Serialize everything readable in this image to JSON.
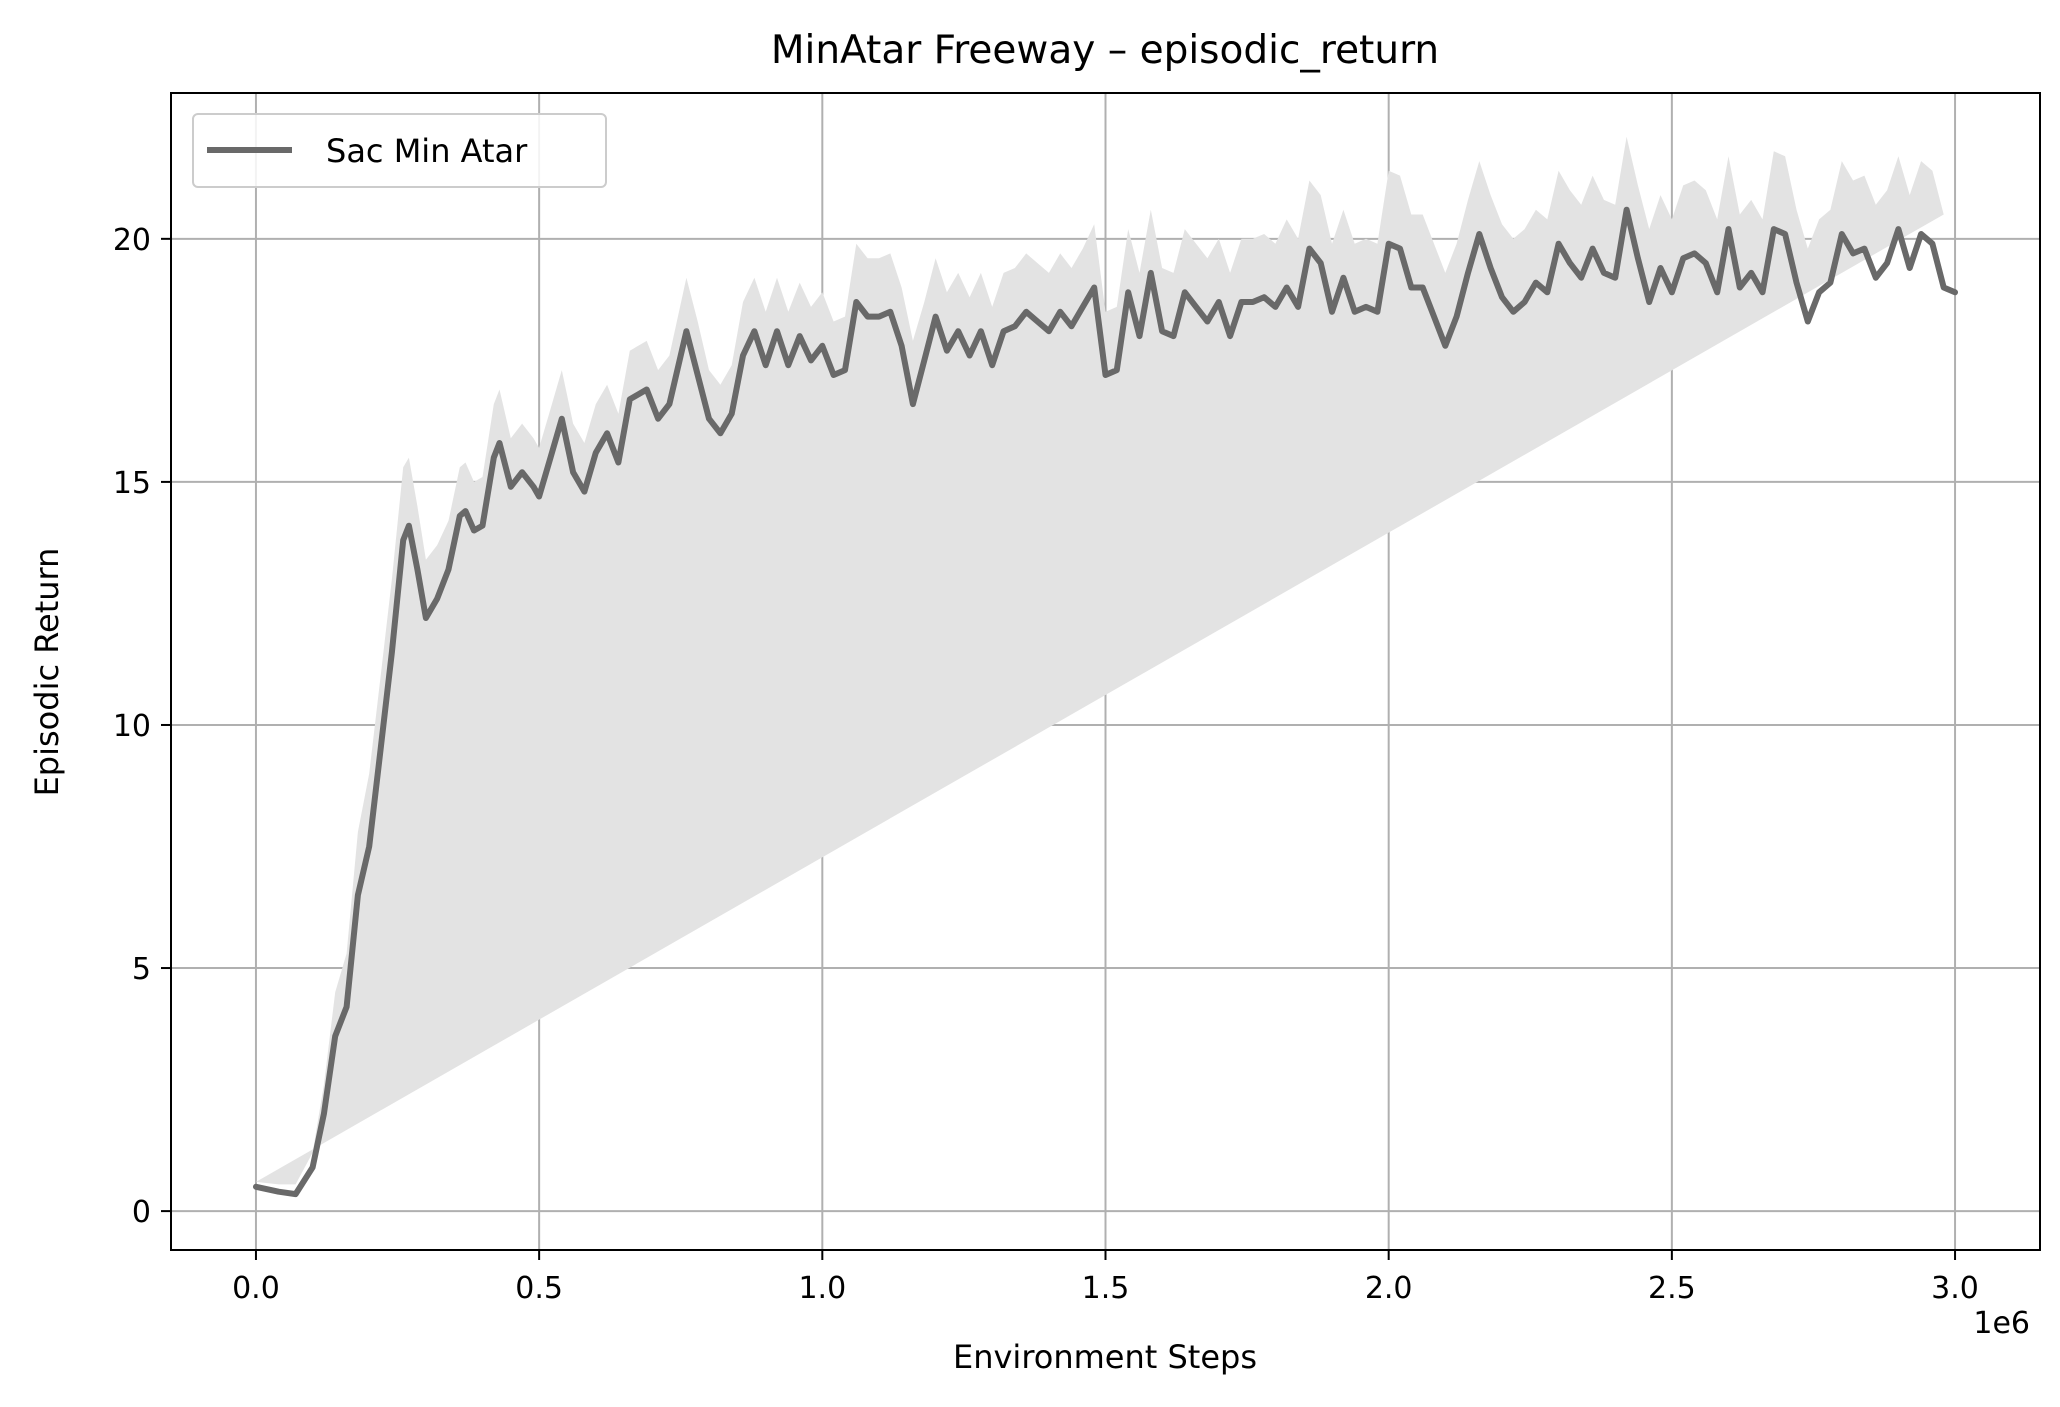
{
  "chart_data": {
    "type": "line",
    "title": "MinAtar Freeway – episodic_return",
    "xlabel": "Environment Steps",
    "ylabel": "Episodic Return",
    "x_offset_label": "1e6",
    "xlim": [
      -150000,
      3150000
    ],
    "ylim": [
      -0.8,
      23.0
    ],
    "x_ticks": [
      0,
      500000,
      1000000,
      1500000,
      2000000,
      2500000,
      3000000
    ],
    "x_tick_labels": [
      "0.0",
      "0.5",
      "1.0",
      "1.5",
      "2.0",
      "2.5",
      "3.0"
    ],
    "y_ticks": [
      0,
      5,
      10,
      15,
      20
    ],
    "y_tick_labels": [
      "0",
      "5",
      "10",
      "15",
      "20"
    ],
    "grid": true,
    "legend_position": "top-left",
    "colors": {
      "line": "#696969",
      "band": "#e3e3e3",
      "grid": "#b0b0b0"
    },
    "series": [
      {
        "name": "Sac Min Atar",
        "x": [
          0,
          40000,
          70000,
          100000,
          120000,
          140000,
          160000,
          180000,
          200000,
          220000,
          240000,
          260000,
          270000,
          285000,
          300000,
          320000,
          340000,
          360000,
          370000,
          385000,
          400000,
          420000,
          430000,
          450000,
          470000,
          490000,
          500000,
          520000,
          540000,
          560000,
          580000,
          600000,
          620000,
          640000,
          660000,
          690000,
          710000,
          730000,
          760000,
          780000,
          800000,
          820000,
          840000,
          860000,
          880000,
          900000,
          920000,
          940000,
          960000,
          980000,
          1000000,
          1020000,
          1040000,
          1060000,
          1080000,
          1100000,
          1120000,
          1140000,
          1160000,
          1180000,
          1200000,
          1220000,
          1240000,
          1260000,
          1280000,
          1300000,
          1320000,
          1340000,
          1360000,
          1380000,
          1400000,
          1420000,
          1440000,
          1460000,
          1480000,
          1500000,
          1520000,
          1540000,
          1560000,
          1580000,
          1600000,
          1620000,
          1640000,
          1660000,
          1680000,
          1700000,
          1720000,
          1740000,
          1760000,
          1780000,
          1800000,
          1820000,
          1840000,
          1860000,
          1880000,
          1900000,
          1920000,
          1940000,
          1960000,
          1980000,
          2000000,
          2020000,
          2040000,
          2060000,
          2080000,
          2100000,
          2120000,
          2140000,
          2160000,
          2180000,
          2200000,
          2220000,
          2240000,
          2260000,
          2280000,
          2300000,
          2320000,
          2340000,
          2360000,
          2380000,
          2400000,
          2420000,
          2440000,
          2460000,
          2480000,
          2500000,
          2520000,
          2540000,
          2560000,
          2580000,
          2600000,
          2620000,
          2640000,
          2660000,
          2680000,
          2700000,
          2720000,
          2740000,
          2760000,
          2780000,
          2800000,
          2820000,
          2840000,
          2860000,
          2880000,
          2900000,
          2920000,
          2940000,
          2960000,
          2980000,
          3000000
        ],
        "y": [
          0.5,
          0.4,
          0.35,
          0.9,
          2.0,
          3.6,
          4.2,
          6.5,
          7.5,
          9.5,
          11.5,
          13.8,
          14.1,
          13.2,
          12.2,
          12.6,
          13.2,
          14.3,
          14.4,
          14.0,
          14.1,
          15.5,
          15.8,
          14.9,
          15.2,
          14.9,
          14.7,
          15.5,
          16.3,
          15.2,
          14.8,
          15.6,
          16.0,
          15.4,
          16.7,
          16.9,
          16.3,
          16.6,
          18.1,
          17.2,
          16.3,
          16.0,
          16.4,
          17.6,
          18.1,
          17.4,
          18.1,
          17.4,
          18.0,
          17.5,
          17.8,
          17.2,
          17.3,
          18.7,
          18.4,
          18.4,
          18.5,
          17.8,
          16.6,
          17.5,
          18.4,
          17.7,
          18.1,
          17.6,
          18.1,
          17.4,
          18.1,
          18.2,
          18.5,
          18.3,
          18.1,
          18.5,
          18.2,
          18.6,
          19.0,
          17.2,
          17.3,
          18.9,
          18.0,
          19.3,
          18.1,
          18.0,
          18.9,
          18.6,
          18.3,
          18.7,
          18.0,
          18.7,
          18.7,
          18.8,
          18.6,
          19.0,
          18.6,
          19.8,
          19.5,
          18.5,
          19.2,
          18.5,
          18.6,
          18.5,
          19.9,
          19.8,
          19.0,
          19.0,
          18.4,
          17.8,
          18.4,
          19.3,
          20.1,
          19.4,
          18.8,
          18.5,
          18.7,
          19.1,
          18.9,
          19.9,
          19.5,
          19.2,
          19.8,
          19.3,
          19.2,
          20.6,
          19.6,
          18.7,
          19.4,
          18.9,
          19.6,
          19.7,
          19.5,
          18.9,
          20.2,
          19.0,
          19.3,
          18.9,
          20.2,
          20.1,
          19.1,
          18.3,
          18.9,
          19.1,
          20.1,
          19.7,
          19.8,
          19.2,
          19.5,
          20.2,
          19.4,
          20.1,
          19.9,
          19.0,
          18.9
        ],
        "band_halfwidth": [
          0.1,
          0.15,
          0.2,
          0.3,
          0.6,
          0.9,
          1.1,
          1.3,
          1.5,
          1.5,
          1.5,
          1.5,
          1.4,
          1.3,
          1.2,
          1.1,
          1.0,
          1.0,
          1.0,
          1.0,
          1.0,
          1.1,
          1.1,
          1.0,
          1.0,
          1.0,
          1.0,
          1.0,
          1.0,
          1.0,
          1.0,
          1.0,
          1.0,
          1.0,
          1.0,
          1.0,
          1.0,
          1.0,
          1.1,
          1.1,
          1.0,
          1.0,
          1.0,
          1.1,
          1.1,
          1.1,
          1.1,
          1.1,
          1.1,
          1.1,
          1.1,
          1.1,
          1.1,
          1.2,
          1.2,
          1.2,
          1.2,
          1.2,
          1.3,
          1.2,
          1.2,
          1.2,
          1.2,
          1.2,
          1.2,
          1.2,
          1.2,
          1.2,
          1.2,
          1.2,
          1.2,
          1.2,
          1.2,
          1.2,
          1.3,
          1.3,
          1.3,
          1.3,
          1.3,
          1.3,
          1.3,
          1.3,
          1.3,
          1.3,
          1.3,
          1.3,
          1.3,
          1.3,
          1.3,
          1.3,
          1.3,
          1.4,
          1.4,
          1.4,
          1.4,
          1.4,
          1.4,
          1.4,
          1.4,
          1.4,
          1.5,
          1.5,
          1.5,
          1.5,
          1.5,
          1.5,
          1.5,
          1.5,
          1.5,
          1.5,
          1.5,
          1.5,
          1.5,
          1.5,
          1.5,
          1.5,
          1.5,
          1.5,
          1.5,
          1.5,
          1.5,
          1.5,
          1.5,
          1.5,
          1.5,
          1.5,
          1.5,
          1.5,
          1.5,
          1.5,
          1.5,
          1.5,
          1.5,
          1.5,
          1.6,
          1.6,
          1.5,
          1.5,
          1.5,
          1.5,
          1.5,
          1.5,
          1.5,
          1.5,
          1.5,
          1.5,
          1.5,
          1.5,
          1.5,
          1.5
        ]
      }
    ]
  }
}
